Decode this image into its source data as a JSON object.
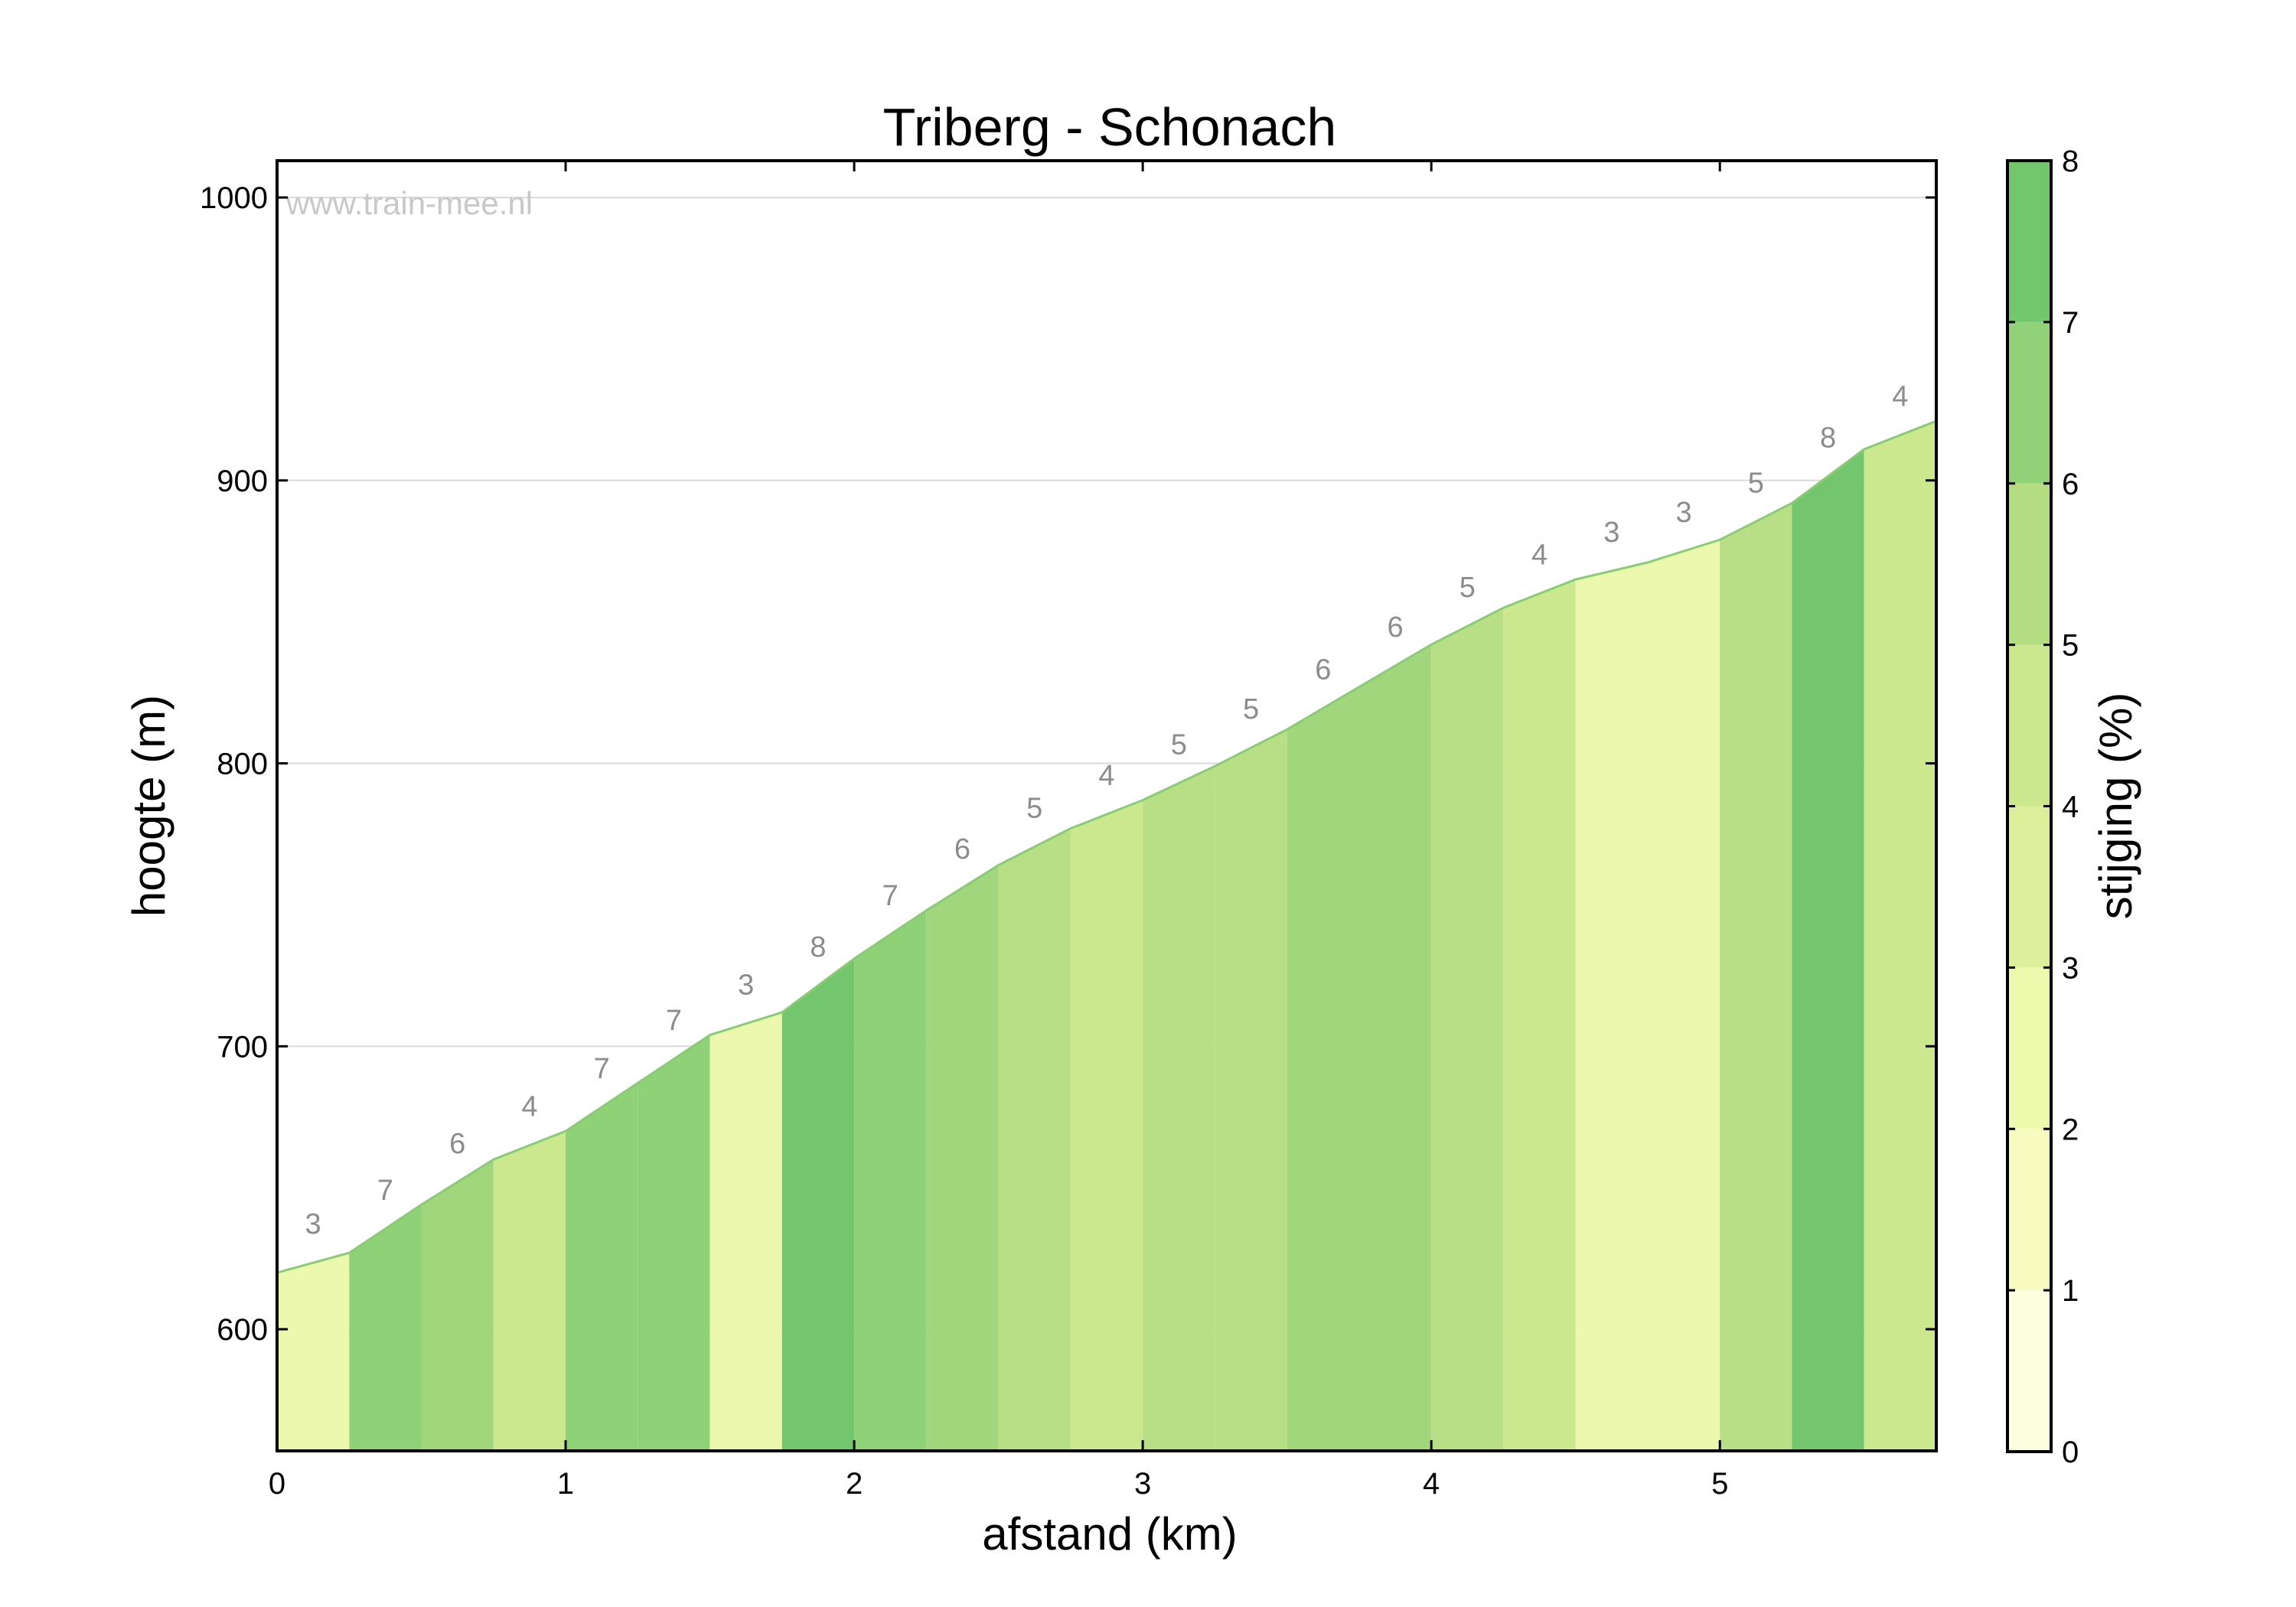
{
  "chart_data": {
    "type": "area",
    "title": "Triberg - Schonach",
    "xlabel": "afstand (km)",
    "ylabel": "hoogte (m)",
    "watermark": "www.train-mee.nl",
    "xlim": [
      0,
      5.75
    ],
    "ylim": [
      557,
      1013
    ],
    "xticks": [
      0,
      1,
      2,
      3,
      4,
      5
    ],
    "yticks": [
      600,
      700,
      800,
      900,
      1000
    ],
    "grid": "horizontal",
    "distance_km": [
      0,
      0.25,
      0.5,
      0.75,
      1.0,
      1.25,
      1.5,
      1.75,
      2.0,
      2.25,
      2.5,
      2.75,
      3.0,
      3.25,
      3.5,
      3.75,
      4.0,
      4.25,
      4.5,
      4.75,
      5.0,
      5.25,
      5.5,
      5.75
    ],
    "elevation_m": [
      620,
      627,
      644,
      660,
      670,
      687,
      704,
      712,
      731,
      748,
      764,
      777,
      787,
      799,
      812,
      827,
      842,
      855,
      865,
      871,
      879,
      892,
      911,
      921
    ],
    "segments": [
      {
        "start": 0.0,
        "end": 0.25,
        "grade": 3
      },
      {
        "start": 0.25,
        "end": 0.5,
        "grade": 7
      },
      {
        "start": 0.5,
        "end": 0.75,
        "grade": 6
      },
      {
        "start": 0.75,
        "end": 1.0,
        "grade": 4
      },
      {
        "start": 1.0,
        "end": 1.25,
        "grade": 7
      },
      {
        "start": 1.25,
        "end": 1.5,
        "grade": 7
      },
      {
        "start": 1.5,
        "end": 1.75,
        "grade": 3
      },
      {
        "start": 1.75,
        "end": 2.0,
        "grade": 8
      },
      {
        "start": 2.0,
        "end": 2.25,
        "grade": 7
      },
      {
        "start": 2.25,
        "end": 2.5,
        "grade": 6
      },
      {
        "start": 2.5,
        "end": 2.75,
        "grade": 5
      },
      {
        "start": 2.75,
        "end": 3.0,
        "grade": 4
      },
      {
        "start": 3.0,
        "end": 3.25,
        "grade": 5
      },
      {
        "start": 3.25,
        "end": 3.5,
        "grade": 5
      },
      {
        "start": 3.5,
        "end": 3.75,
        "grade": 6
      },
      {
        "start": 3.75,
        "end": 4.0,
        "grade": 6
      },
      {
        "start": 4.0,
        "end": 4.25,
        "grade": 5
      },
      {
        "start": 4.25,
        "end": 4.5,
        "grade": 4
      },
      {
        "start": 4.5,
        "end": 4.75,
        "grade": 3
      },
      {
        "start": 4.75,
        "end": 5.0,
        "grade": 3
      },
      {
        "start": 5.0,
        "end": 5.25,
        "grade": 5
      },
      {
        "start": 5.25,
        "end": 5.5,
        "grade": 8
      },
      {
        "start": 5.5,
        "end": 5.75,
        "grade": 4
      }
    ],
    "colorbar": {
      "label": "stijging (%)",
      "range": [
        0,
        8
      ],
      "ticks": [
        0,
        1,
        2,
        3,
        4,
        5,
        6,
        7,
        8
      ],
      "band_colors": [
        "#fdfde0",
        "#f7fbbf",
        "#edf9ad",
        "#deef9c",
        "#cbe88f",
        "#b4dd82",
        "#91d177",
        "#72c76d"
      ]
    },
    "grade_colors": {
      "3": "#ecf8ad",
      "4": "#cce88e",
      "5": "#b8df86",
      "6": "#a1d67c",
      "7": "#8fd177",
      "8": "#73c66d"
    },
    "line_color": "#8acc73"
  }
}
